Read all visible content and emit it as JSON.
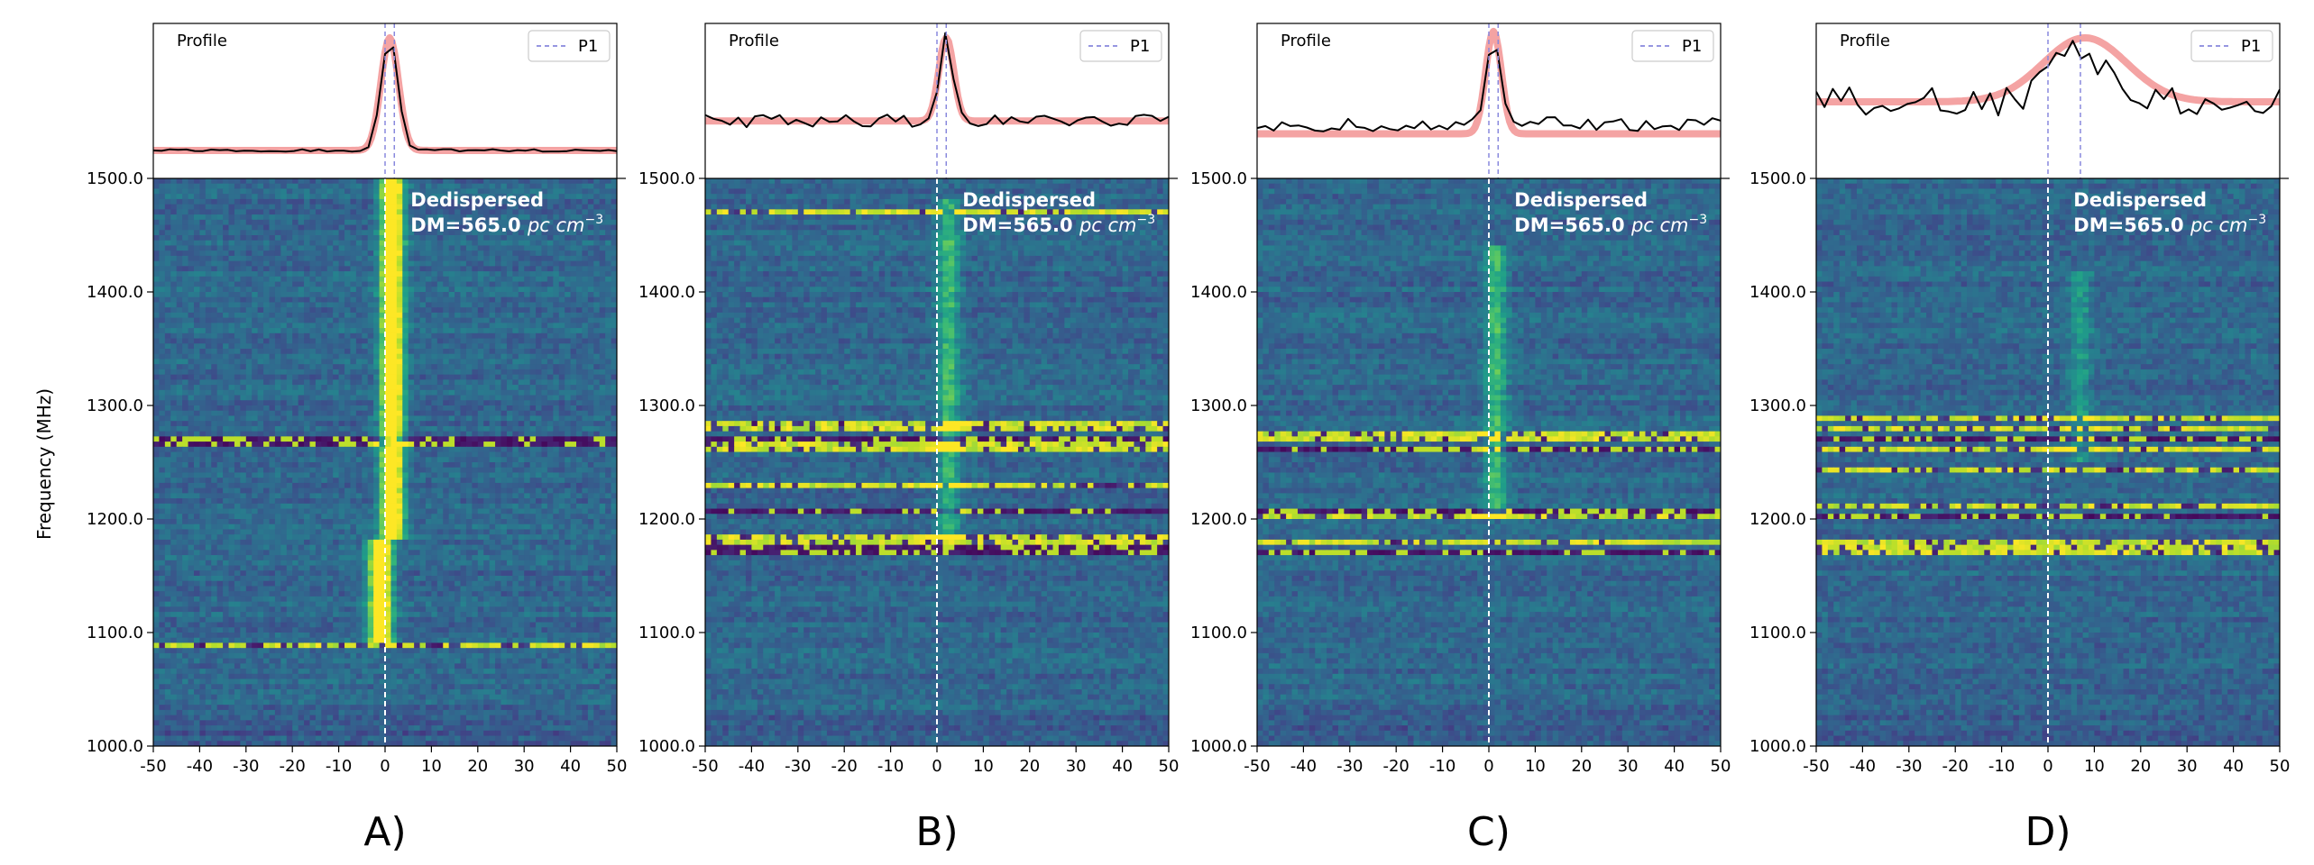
{
  "figure": {
    "ylabel": "Frequency (MHz)",
    "panel_labels": [
      "A)",
      "B)",
      "C)",
      "D)"
    ]
  },
  "chart_data": [
    {
      "type": "heatmap",
      "id": "A",
      "title": "A)",
      "profile_label": "Profile",
      "legend_label": "P1",
      "annotation_line1": "Dedispersed",
      "annotation_line2_value": "DM=565.0",
      "annotation_line2_unit": "pc cm",
      "annotation_line2_exp": "−3",
      "xlim": [
        -50,
        50
      ],
      "ylim": [
        1000.0,
        1500.0
      ],
      "xticks": [
        -50,
        -40,
        -30,
        -20,
        -10,
        0,
        10,
        20,
        30,
        40,
        50
      ],
      "yticks": [
        "1000.0",
        "1100.0",
        "1200.0",
        "1300.0",
        "1400.0",
        "1500.0"
      ],
      "ylabel": "Frequency (MHz)",
      "dedispersed_marker_x": 0,
      "p1_lines_x": [
        0,
        2
      ],
      "burst": {
        "center_x": 1.5,
        "width_x": 3,
        "freq_low": 1090,
        "freq_high": 1500,
        "strength": "strong"
      },
      "rfi_bands_mhz": [
        {
          "freq": 1268,
          "kind": "dark"
        },
        {
          "freq": 1088,
          "kind": "bright"
        }
      ],
      "profile": {
        "baseline": 0.12,
        "peak": 1.0,
        "peak_x": 1,
        "sigma": 1.8,
        "noise": 0.01
      },
      "fit": {
        "peak_x": 1,
        "sigma": 1.9,
        "amp": 0.88,
        "baseline": 0.12
      }
    },
    {
      "type": "heatmap",
      "id": "B",
      "title": "B)",
      "profile_label": "Profile",
      "legend_label": "P1",
      "annotation_line1": "Dedispersed",
      "annotation_line2_value": "DM=565.0",
      "annotation_line2_unit": "pc cm",
      "annotation_line2_exp": "−3",
      "xlim": [
        -50,
        50
      ],
      "ylim": [
        1000.0,
        1500.0
      ],
      "xticks": [
        -50,
        -40,
        -30,
        -20,
        -10,
        0,
        10,
        20,
        30,
        40,
        50
      ],
      "yticks": [
        "1000.0",
        "1100.0",
        "1200.0",
        "1300.0",
        "1400.0",
        "1500.0"
      ],
      "dedispersed_marker_x": 0,
      "p1_lines_x": [
        0,
        2
      ],
      "burst": {
        "center_x": 2.5,
        "width_x": 3,
        "freq_low": 1180,
        "freq_high": 1480,
        "strength": "weak"
      },
      "rfi_bands_mhz": [
        {
          "freq": 1472,
          "kind": "bright"
        },
        {
          "freq": 1282,
          "kind": "bright"
        },
        {
          "freq": 1272,
          "kind": "dark"
        },
        {
          "freq": 1264,
          "kind": "bright"
        },
        {
          "freq": 1228,
          "kind": "bright"
        },
        {
          "freq": 1207,
          "kind": "dark"
        },
        {
          "freq": 1182,
          "kind": "bright"
        },
        {
          "freq": 1173,
          "kind": "dark"
        }
      ],
      "profile": {
        "baseline": 0.35,
        "peak": 1.0,
        "peak_x": 2,
        "sigma": 1.5,
        "noise": 0.05
      },
      "fit": {
        "peak_x": 2,
        "sigma": 1.6,
        "amp": 0.65,
        "baseline": 0.35
      }
    },
    {
      "type": "heatmap",
      "id": "C",
      "title": "C)",
      "profile_label": "Profile",
      "legend_label": "P1",
      "annotation_line1": "Dedispersed",
      "annotation_line2_value": "DM=565.0",
      "annotation_line2_unit": "pc cm",
      "annotation_line2_exp": "−3",
      "xlim": [
        -50,
        50
      ],
      "ylim": [
        1000.0,
        1500.0
      ],
      "xticks": [
        -50,
        -40,
        -30,
        -20,
        -10,
        0,
        10,
        20,
        30,
        40,
        50
      ],
      "yticks": [
        "1000.0",
        "1100.0",
        "1200.0",
        "1300.0",
        "1400.0",
        "1500.0"
      ],
      "dedispersed_marker_x": 0,
      "p1_lines_x": [
        0,
        2
      ],
      "burst": {
        "center_x": 1.5,
        "width_x": 3,
        "freq_low": 1200,
        "freq_high": 1440,
        "strength": "weak"
      },
      "rfi_bands_mhz": [
        {
          "freq": 1273,
          "kind": "bright"
        },
        {
          "freq": 1262,
          "kind": "dark"
        },
        {
          "freq": 1207,
          "kind": "dark"
        },
        {
          "freq": 1203,
          "kind": "bright"
        },
        {
          "freq": 1180,
          "kind": "bright"
        },
        {
          "freq": 1172,
          "kind": "dark"
        }
      ],
      "profile": {
        "baseline": 0.32,
        "peak": 1.0,
        "peak_x": 1,
        "sigma": 1.5,
        "noise": 0.06
      },
      "fit": {
        "peak_x": 1,
        "sigma": 1.7,
        "amp": 0.8,
        "baseline": 0.25
      }
    },
    {
      "type": "heatmap",
      "id": "D",
      "title": "D)",
      "profile_label": "Profile",
      "legend_label": "P1",
      "annotation_line1": "Dedispersed",
      "annotation_line2_value": "DM=565.0",
      "annotation_line2_unit": "pc cm",
      "annotation_line2_exp": "−3",
      "xlim": [
        -50,
        50
      ],
      "ylim": [
        1000.0,
        1500.0
      ],
      "xticks": [
        -50,
        -40,
        -30,
        -20,
        -10,
        0,
        10,
        20,
        30,
        40,
        50
      ],
      "yticks": [
        "1000.0",
        "1100.0",
        "1200.0",
        "1300.0",
        "1400.0",
        "1500.0"
      ],
      "dedispersed_marker_x": 0,
      "p1_lines_x": [
        0,
        7
      ],
      "burst": {
        "center_x": 7,
        "width_x": 3,
        "freq_low": 1250,
        "freq_high": 1420,
        "strength": "faint"
      },
      "rfi_bands_mhz": [
        {
          "freq": 1290,
          "kind": "bright"
        },
        {
          "freq": 1280,
          "kind": "bright"
        },
        {
          "freq": 1270,
          "kind": "dark"
        },
        {
          "freq": 1262,
          "kind": "bright"
        },
        {
          "freq": 1243,
          "kind": "bright"
        },
        {
          "freq": 1210,
          "kind": "bright"
        },
        {
          "freq": 1203,
          "kind": "dark"
        },
        {
          "freq": 1180,
          "kind": "bright"
        },
        {
          "freq": 1173,
          "kind": "bright"
        }
      ],
      "profile": {
        "baseline": 0.5,
        "peak": 0.9,
        "peak_x": 7,
        "sigma": 6,
        "noise": 0.12
      },
      "fit": {
        "peak_x": 8,
        "sigma": 9,
        "amp": 0.5,
        "baseline": 0.5
      }
    }
  ]
}
